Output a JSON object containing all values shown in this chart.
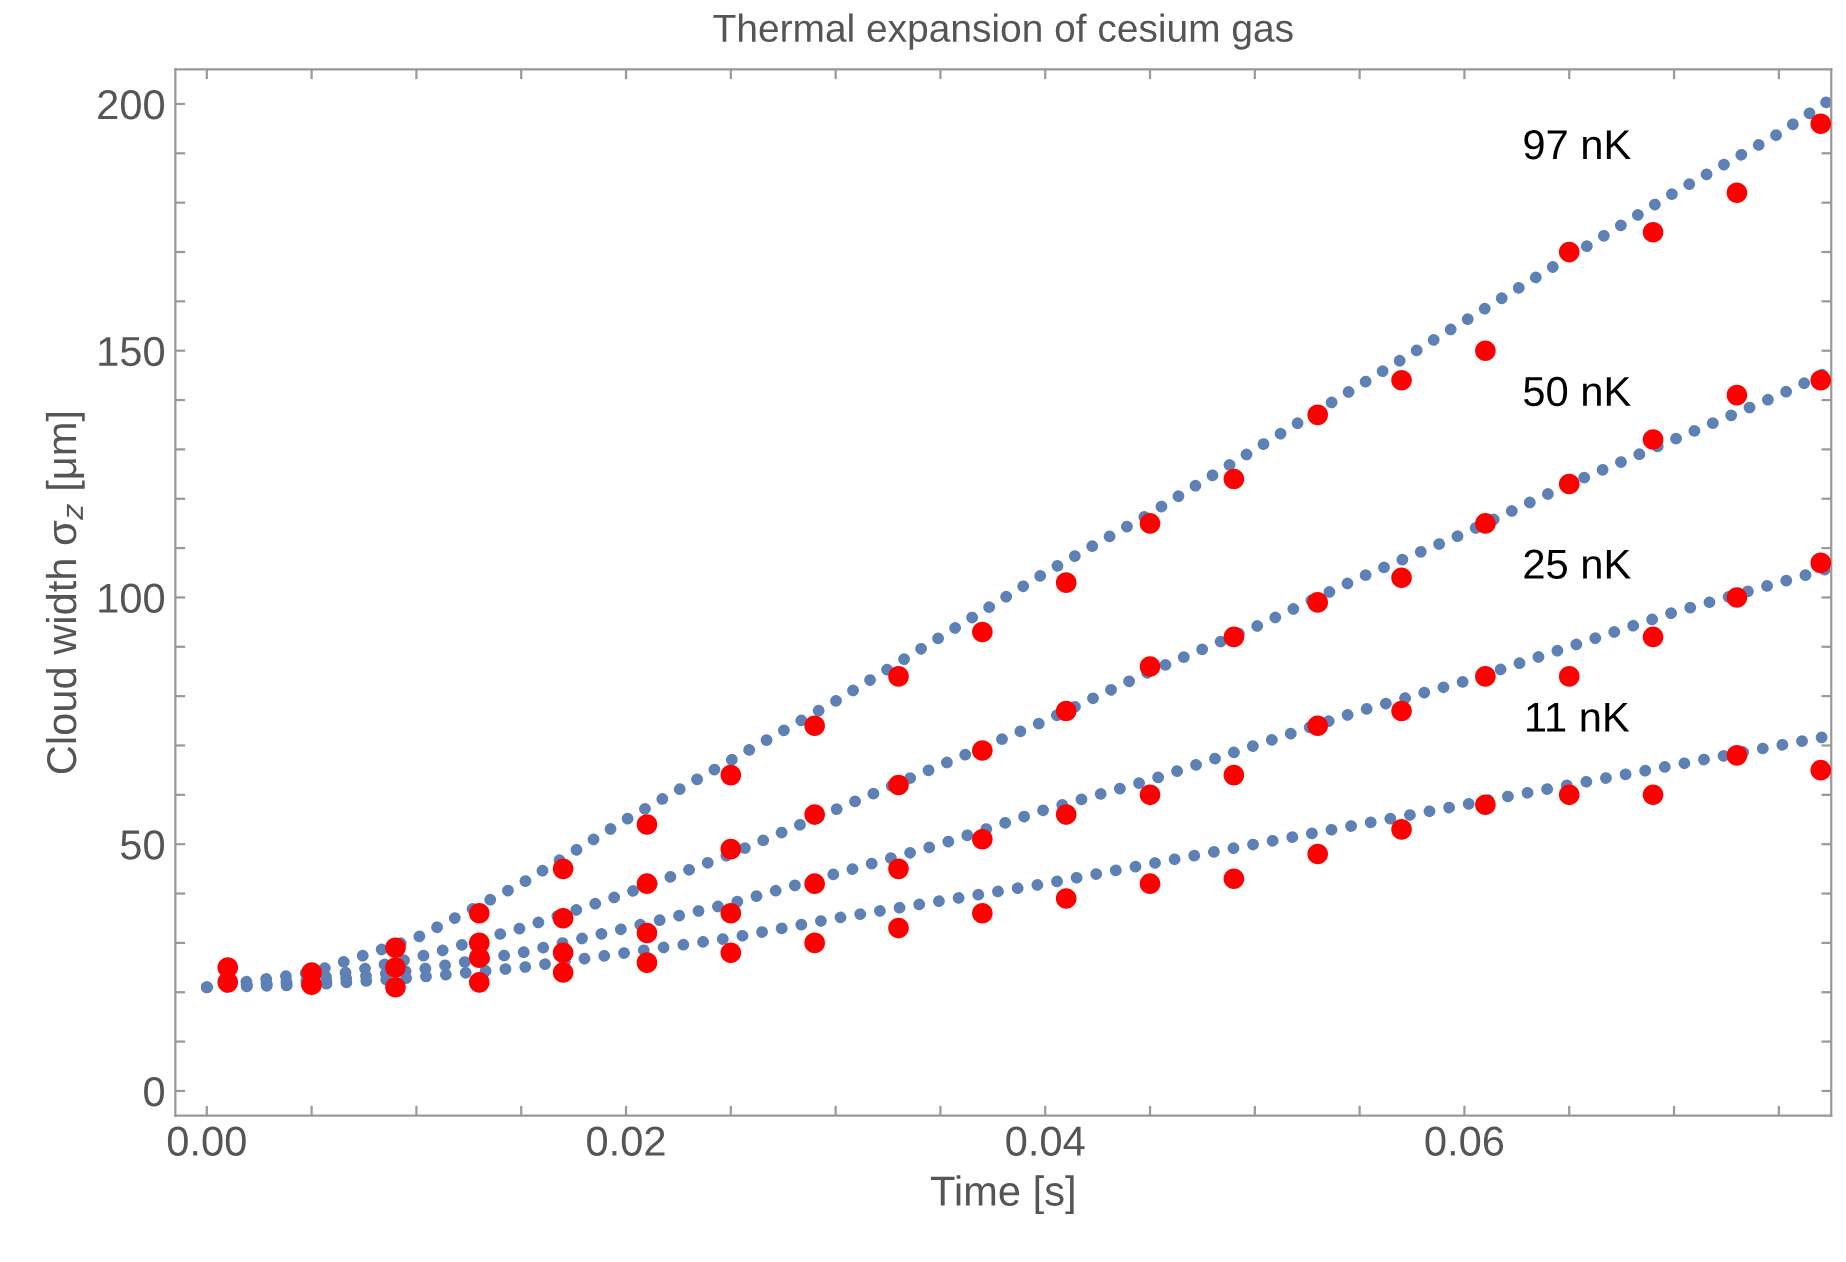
{
  "chart_data": {
    "type": "scatter",
    "title": "Thermal expansion of cesium gas",
    "xlabel": "Time [s]",
    "ylabel": "Cloud width σ$_{z}$ [μm]",
    "xlim": [
      -0.0015,
      0.0775
    ],
    "ylim": [
      -5,
      207
    ],
    "xticks": [
      {
        "value": 0,
        "label": "0.00"
      },
      {
        "value": 0.005,
        "label": null
      },
      {
        "value": 0.01,
        "label": null
      },
      {
        "value": 0.015,
        "label": null
      },
      {
        "value": 0.02,
        "label": "0.02"
      },
      {
        "value": 0.025,
        "label": null
      },
      {
        "value": 0.03,
        "label": null
      },
      {
        "value": 0.035,
        "label": null
      },
      {
        "value": 0.04,
        "label": "0.04"
      },
      {
        "value": 0.045,
        "label": null
      },
      {
        "value": 0.05,
        "label": null
      },
      {
        "value": 0.055,
        "label": null
      },
      {
        "value": 0.06,
        "label": "0.06"
      },
      {
        "value": 0.065,
        "label": null
      },
      {
        "value": 0.07,
        "label": null
      },
      {
        "value": 0.075,
        "label": null
      }
    ],
    "yticks": [
      0,
      {
        "value": 10,
        "label": null
      },
      {
        "value": 20,
        "label": null
      },
      {
        "value": 30,
        "label": null
      },
      {
        "value": 40,
        "label": null
      },
      50,
      {
        "value": 60,
        "label": null
      },
      {
        "value": 70,
        "label": null
      },
      {
        "value": 80,
        "label": null
      },
      {
        "value": 90,
        "label": null
      },
      100,
      {
        "value": 110,
        "label": null
      },
      {
        "value": 120,
        "label": null
      },
      {
        "value": 130,
        "label": null
      },
      {
        "value": 140,
        "label": null
      },
      150,
      {
        "value": 160,
        "label": null
      },
      {
        "value": 170,
        "label": null
      },
      {
        "value": 180,
        "label": null
      },
      {
        "value": 190,
        "label": null
      },
      200
    ],
    "grid": false,
    "legend": false,
    "series": [
      {
        "type": "line",
        "line_style": "dotted",
        "color": "#5e81b5",
        "x": [
          0,
          0.005,
          0.01,
          0.015,
          0.02,
          0.025,
          0.03,
          0.035,
          0.04,
          0.045,
          0.05,
          0.055,
          0.06,
          0.065,
          0.07,
          0.075,
          0.0775
        ],
        "values": [
          21,
          24,
          31,
          42,
          55,
          67,
          79,
          92,
          105,
          117,
          130,
          143,
          156,
          169,
          182,
          194,
          201
        ],
        "name": "97 nK"
      },
      {
        "type": "line",
        "line_style": "dotted",
        "color": "#5e81b5",
        "x": [
          0,
          0.005,
          0.01,
          0.015,
          0.02,
          0.025,
          0.03,
          0.035,
          0.04,
          0.045,
          0.05,
          0.055,
          0.06,
          0.065,
          0.07,
          0.075,
          0.0775
        ],
        "values": [
          21,
          22.5,
          27,
          33,
          40,
          48,
          57,
          66,
          75,
          85,
          94,
          104,
          113,
          123,
          132,
          141,
          146
        ],
        "name": "50 nK"
      },
      {
        "type": "line",
        "line_style": "dotted",
        "color": "#5e81b5",
        "x": [
          0,
          0.005,
          0.01,
          0.015,
          0.02,
          0.025,
          0.03,
          0.035,
          0.04,
          0.045,
          0.05,
          0.055,
          0.06,
          0.065,
          0.07,
          0.075,
          0.0775
        ],
        "values": [
          21,
          22,
          24.5,
          28,
          33,
          38,
          44,
          50,
          57,
          63,
          70,
          77,
          83,
          90,
          97,
          103,
          106
        ],
        "name": "25 nK"
      },
      {
        "type": "line",
        "line_style": "dotted",
        "color": "#5e81b5",
        "x": [
          0,
          0.005,
          0.01,
          0.015,
          0.02,
          0.025,
          0.03,
          0.035,
          0.04,
          0.045,
          0.05,
          0.055,
          0.06,
          0.065,
          0.07,
          0.075,
          0.0775
        ],
        "values": [
          21,
          21.5,
          23,
          25,
          28,
          31,
          35,
          38.5,
          42,
          46,
          50,
          54,
          58,
          62,
          66,
          70,
          72
        ],
        "name": "11 nK"
      },
      {
        "marker": "circle",
        "color": "#ff0000",
        "x": [
          0.001,
          0.005,
          0.009,
          0.013,
          0.017,
          0.021,
          0.025,
          0.029,
          0.033,
          0.037,
          0.041,
          0.045,
          0.049,
          0.053,
          0.057,
          0.061,
          0.065,
          0.069,
          0.073,
          0.077
        ],
        "values": [
          25,
          24,
          29,
          36,
          45,
          54,
          64,
          74,
          84,
          93,
          103,
          115,
          124,
          137,
          144,
          150,
          170,
          174,
          182,
          196
        ]
      },
      {
        "marker": "circle",
        "color": "#ff0000",
        "x": [
          0.013,
          0.017,
          0.021,
          0.025,
          0.029,
          0.033,
          0.037,
          0.041,
          0.045,
          0.049,
          0.053,
          0.057,
          0.061,
          0.065,
          0.069,
          0.073,
          0.077
        ],
        "values": [
          30,
          35,
          42,
          49,
          56,
          62,
          69,
          77,
          86,
          92,
          99,
          104,
          115,
          123,
          132,
          141,
          144
        ]
      },
      {
        "marker": "circle",
        "color": "#ff0000",
        "x": [
          0.009,
          0.013,
          0.017,
          0.021,
          0.025,
          0.029,
          0.033,
          0.037,
          0.041,
          0.045,
          0.049,
          0.053,
          0.057,
          0.061,
          0.065,
          0.069,
          0.073,
          0.077
        ],
        "values": [
          25,
          27,
          28,
          32,
          36,
          42,
          45,
          51,
          56,
          60,
          64,
          74,
          77,
          84,
          84,
          92,
          100,
          107
        ]
      },
      {
        "marker": "circle",
        "color": "#ff0000",
        "x": [
          0.001,
          0.005,
          0.009,
          0.013,
          0.017,
          0.021,
          0.025,
          0.029,
          0.033,
          0.037,
          0.041,
          0.045,
          0.049,
          0.053,
          0.057,
          0.061,
          0.065,
          0.069,
          0.073,
          0.077
        ],
        "values": [
          22,
          21.5,
          21,
          22,
          24,
          26,
          28,
          30,
          33,
          36,
          39,
          42,
          43,
          48,
          53,
          58,
          60,
          60,
          68,
          65
        ]
      }
    ]
  }
}
